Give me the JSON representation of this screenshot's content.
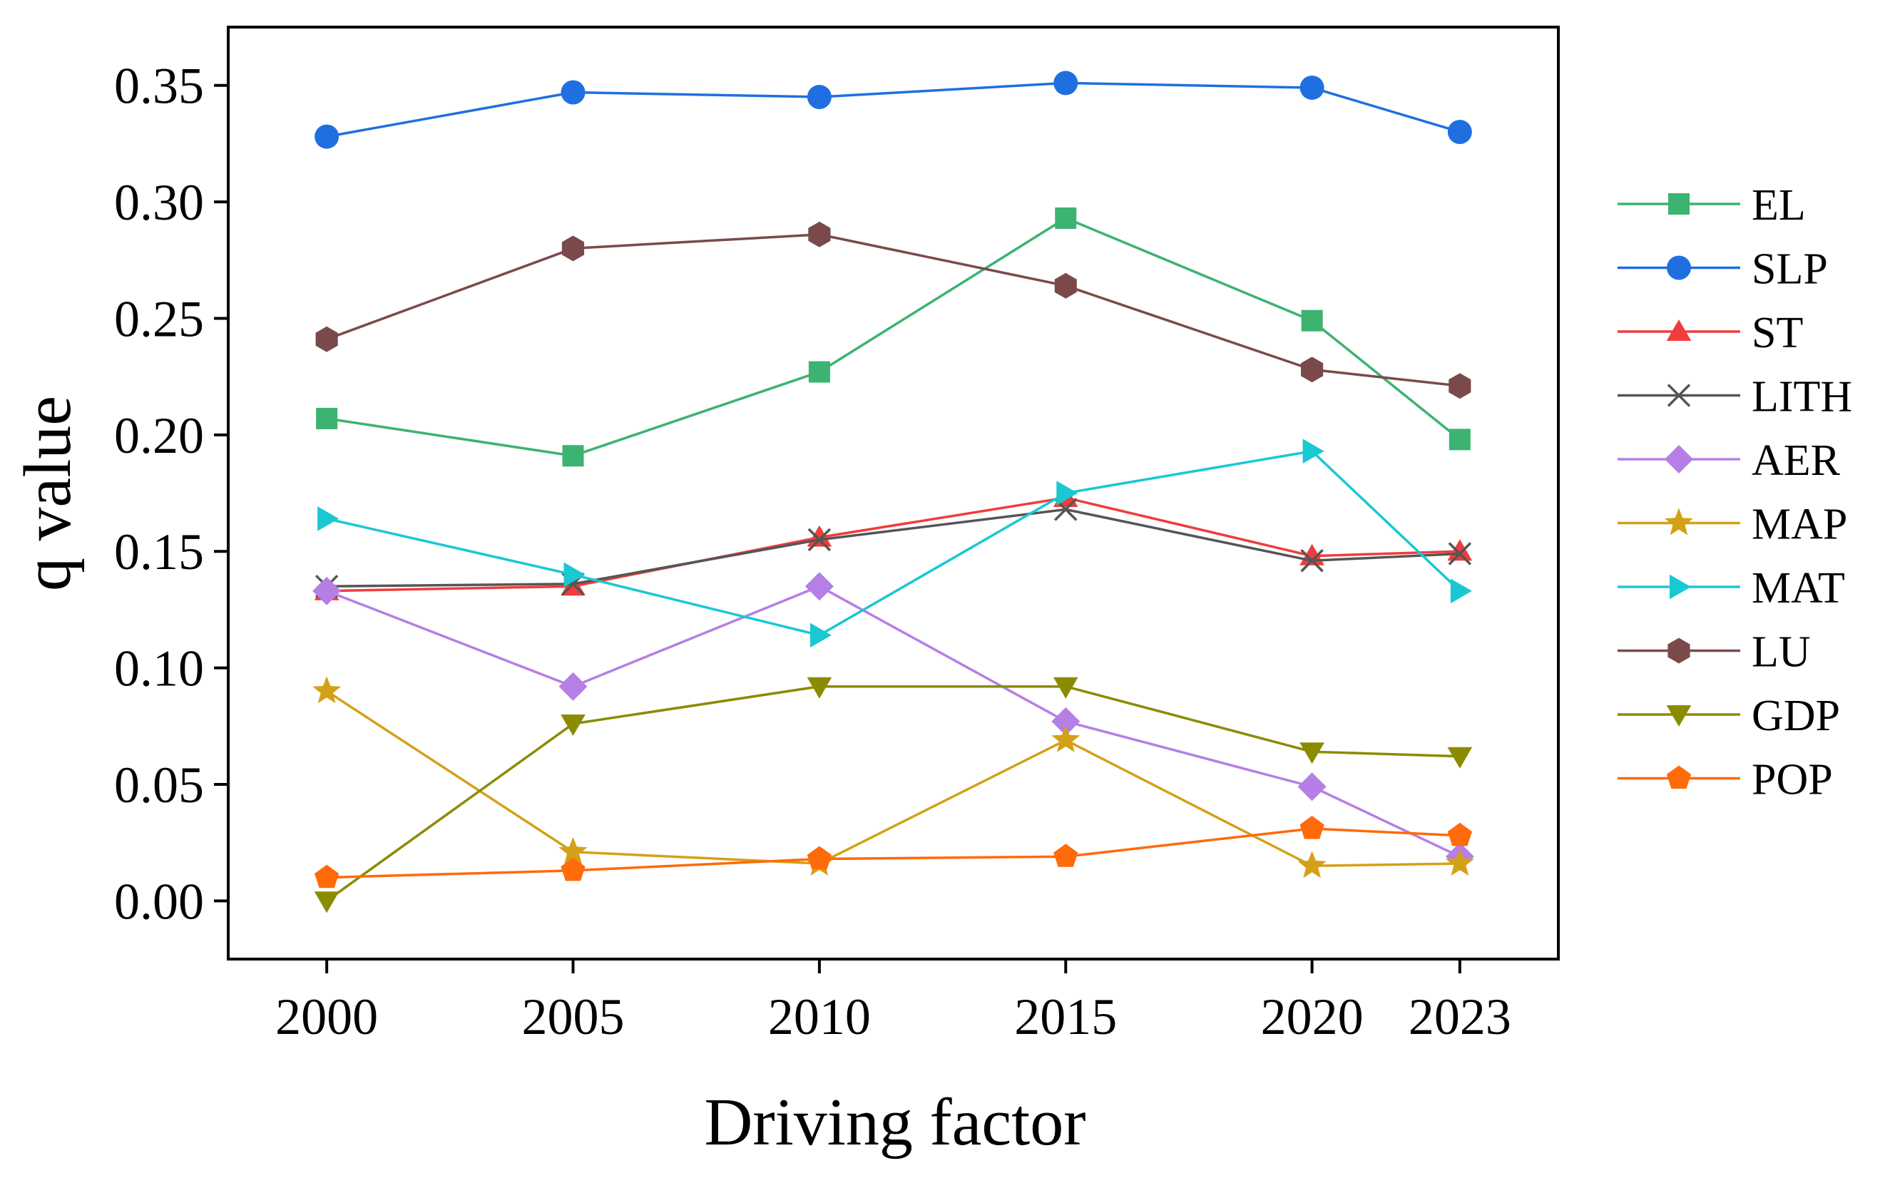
{
  "chart_data": {
    "type": "line",
    "title": "",
    "xlabel": "Driving factor",
    "ylabel": "q value",
    "x": [
      2000,
      2005,
      2010,
      2015,
      2020,
      2023
    ],
    "x_tick_labels": [
      "2000",
      "2005",
      "2010",
      "2015",
      "2020",
      "2023"
    ],
    "xlim": [
      1998,
      2025
    ],
    "ylim": [
      -0.025,
      0.375
    ],
    "y_ticks": [
      0.0,
      0.05,
      0.1,
      0.15,
      0.2,
      0.25,
      0.3,
      0.35
    ],
    "y_tick_labels": [
      "0.00",
      "0.05",
      "0.10",
      "0.15",
      "0.20",
      "0.25",
      "0.30",
      "0.35"
    ],
    "grid": false,
    "legend_position": "right",
    "series": [
      {
        "name": "EL",
        "color": "#3cb371",
        "marker": "square",
        "values": [
          0.207,
          0.191,
          0.227,
          0.293,
          0.249,
          0.198
        ]
      },
      {
        "name": "SLP",
        "color": "#1f6fe0",
        "marker": "circle",
        "values": [
          0.328,
          0.347,
          0.345,
          0.351,
          0.349,
          0.33
        ]
      },
      {
        "name": "ST",
        "color": "#f03c3c",
        "marker": "triangle-up",
        "values": [
          0.133,
          0.135,
          0.156,
          0.173,
          0.148,
          0.15
        ]
      },
      {
        "name": "LITH",
        "color": "#555555",
        "marker": "x",
        "values": [
          0.135,
          0.136,
          0.155,
          0.168,
          0.146,
          0.149
        ]
      },
      {
        "name": "AER",
        "color": "#b57fe6",
        "marker": "diamond",
        "values": [
          0.133,
          0.092,
          0.135,
          0.077,
          0.049,
          0.019
        ]
      },
      {
        "name": "MAP",
        "color": "#d4a017",
        "marker": "star",
        "values": [
          0.09,
          0.021,
          0.016,
          0.069,
          0.015,
          0.016
        ]
      },
      {
        "name": "MAT",
        "color": "#19c8d2",
        "marker": "triangle-right",
        "values": [
          0.164,
          0.14,
          0.114,
          0.175,
          0.193,
          0.133
        ]
      },
      {
        "name": "LU",
        "color": "#7a4a4a",
        "marker": "hexagon",
        "values": [
          0.241,
          0.28,
          0.286,
          0.264,
          0.228,
          0.221
        ]
      },
      {
        "name": "GDP",
        "color": "#8b8b00",
        "marker": "triangle-down",
        "values": [
          0.0,
          0.076,
          0.092,
          0.092,
          0.064,
          0.062
        ]
      },
      {
        "name": "POP",
        "color": "#ff6a0a",
        "marker": "pentagon",
        "values": [
          0.01,
          0.013,
          0.018,
          0.019,
          0.031,
          0.028
        ]
      }
    ]
  }
}
